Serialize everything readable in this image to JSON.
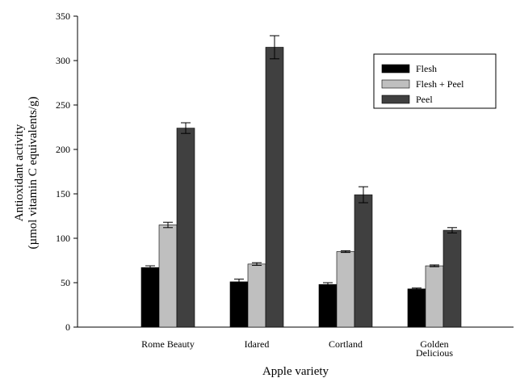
{
  "chart_data": {
    "type": "bar",
    "title": "",
    "xlabel": "Apple variety",
    "ylabel_lines": [
      "Antioxidant activity",
      "(µmol vitamin C equivalents/g)"
    ],
    "ylim": [
      0,
      350
    ],
    "yticks": [
      0,
      50,
      100,
      150,
      200,
      250,
      300,
      350
    ],
    "categories": [
      [
        "Rome Beauty"
      ],
      [
        "Idared"
      ],
      [
        "Cortland"
      ],
      [
        "Golden",
        "Delicious"
      ]
    ],
    "series": [
      {
        "name": "Flesh",
        "color": "#000000",
        "values": [
          67,
          51,
          48,
          43
        ],
        "errors": [
          2,
          3,
          2,
          1
        ]
      },
      {
        "name": "Flesh + Peel",
        "color": "#bfbfbf",
        "values": [
          115,
          71,
          85,
          69
        ],
        "errors": [
          3,
          1.5,
          1,
          1
        ]
      },
      {
        "name": "Peel",
        "color": "#404040",
        "values": [
          224,
          315,
          149,
          109
        ],
        "errors": [
          6,
          13,
          9,
          3
        ]
      }
    ],
    "legend_position": "top-right",
    "grid": false
  }
}
